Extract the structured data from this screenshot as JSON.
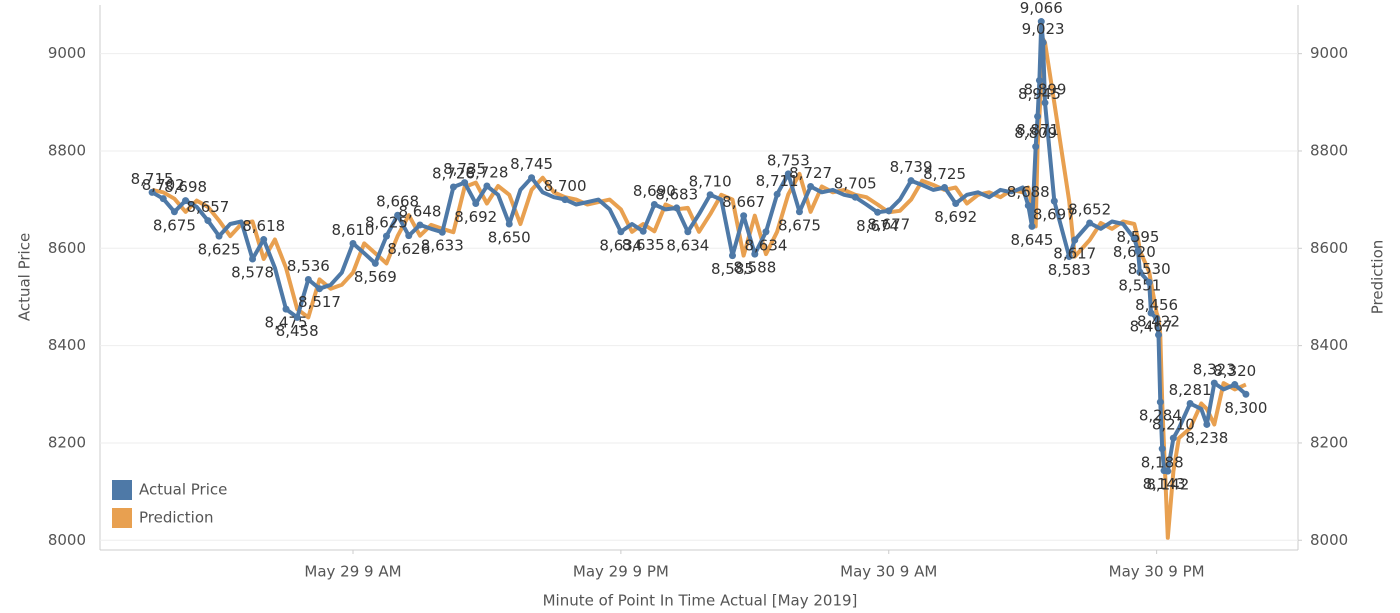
{
  "chart_data": {
    "type": "line",
    "xlabel": "Minute of Point In Time Actual [May 2019]",
    "ylabel": "Actual Price",
    "y2label": "Prediction",
    "x": [
      "2019-05-29 00:00",
      "2019-05-29 00:30",
      "2019-05-29 01:00",
      "2019-05-29 01:30",
      "2019-05-29 02:00",
      "2019-05-29 02:30",
      "2019-05-29 03:00",
      "2019-05-29 03:30",
      "2019-05-29 04:00",
      "2019-05-29 04:30",
      "2019-05-29 05:00",
      "2019-05-29 05:30",
      "2019-05-29 06:00",
      "2019-05-29 06:30",
      "2019-05-29 07:00",
      "2019-05-29 07:30",
      "2019-05-29 08:00",
      "2019-05-29 08:30",
      "2019-05-29 09:00",
      "2019-05-29 09:30",
      "2019-05-29 10:00",
      "2019-05-29 10:30",
      "2019-05-29 11:00",
      "2019-05-29 11:30",
      "2019-05-29 12:00",
      "2019-05-29 12:30",
      "2019-05-29 13:00",
      "2019-05-29 13:30",
      "2019-05-29 14:00",
      "2019-05-29 14:30",
      "2019-05-29 15:00",
      "2019-05-29 15:30",
      "2019-05-29 16:00",
      "2019-05-29 16:30",
      "2019-05-29 17:00",
      "2019-05-29 17:30",
      "2019-05-29 18:00",
      "2019-05-29 18:30",
      "2019-05-29 19:00",
      "2019-05-29 19:30",
      "2019-05-29 20:00",
      "2019-05-29 20:30",
      "2019-05-29 21:00",
      "2019-05-29 21:30",
      "2019-05-29 22:00",
      "2019-05-29 22:30",
      "2019-05-29 23:00",
      "2019-05-29 23:30",
      "2019-05-30 00:00",
      "2019-05-30 00:30",
      "2019-05-30 01:00",
      "2019-05-30 01:30",
      "2019-05-30 02:00",
      "2019-05-30 02:30",
      "2019-05-30 03:00",
      "2019-05-30 03:30",
      "2019-05-30 04:00",
      "2019-05-30 04:30",
      "2019-05-30 05:00",
      "2019-05-30 05:30",
      "2019-05-30 06:00",
      "2019-05-30 06:30",
      "2019-05-30 07:00",
      "2019-05-30 07:30",
      "2019-05-30 08:00",
      "2019-05-30 08:30",
      "2019-05-30 09:00",
      "2019-05-30 09:30",
      "2019-05-30 10:00",
      "2019-05-30 10:30",
      "2019-05-30 11:00",
      "2019-05-30 11:30",
      "2019-05-30 12:00",
      "2019-05-30 12:30",
      "2019-05-30 13:00",
      "2019-05-30 13:30",
      "2019-05-30 14:00",
      "2019-05-30 14:30",
      "2019-05-30 15:00",
      "2019-05-30 15:15",
      "2019-05-30 15:25",
      "2019-05-30 15:35",
      "2019-05-30 15:40",
      "2019-05-30 15:45",
      "2019-05-30 15:50",
      "2019-05-30 15:55",
      "2019-05-30 16:00",
      "2019-05-30 16:25",
      "2019-05-30 17:05",
      "2019-05-30 17:20",
      "2019-05-30 18:00",
      "2019-05-30 18:30",
      "2019-05-30 19:00",
      "2019-05-30 19:30",
      "2019-05-30 20:00",
      "2019-05-30 20:10",
      "2019-05-30 20:15",
      "2019-05-30 20:40",
      "2019-05-30 20:45",
      "2019-05-30 21:00",
      "2019-05-30 21:05",
      "2019-05-30 21:10",
      "2019-05-30 21:15",
      "2019-05-30 21:20",
      "2019-05-30 21:30",
      "2019-05-30 21:45",
      "2019-05-30 22:00",
      "2019-05-30 22:30",
      "2019-05-30 23:00",
      "2019-05-30 23:15",
      "2019-05-30 23:35",
      "2019-05-31 00:00",
      "2019-05-31 00:30",
      "2019-05-31 01:00"
    ],
    "series": [
      {
        "name": "Prediction",
        "color": "#e8a050",
        "axis": "y2",
        "values": [
          8720,
          8715,
          8702,
          8675,
          8698,
          8685,
          8657,
          8625,
          8650,
          8655,
          8578,
          8618,
          8560,
          8475,
          8458,
          8536,
          8517,
          8525,
          8550,
          8610,
          8590,
          8569,
          8625,
          8668,
          8626,
          8648,
          8640,
          8633,
          8726,
          8735,
          8692,
          8728,
          8710,
          8650,
          8720,
          8745,
          8715,
          8705,
          8700,
          8690,
          8695,
          8700,
          8680,
          8634,
          8650,
          8635,
          8690,
          8680,
          8683,
          8634,
          8670,
          8710,
          8700,
          8585,
          8667,
          8588,
          8634,
          8711,
          8753,
          8675,
          8727,
          8715,
          8720,
          8710,
          8705,
          8690,
          8674,
          8677,
          8700,
          8739,
          8730,
          8720,
          8725,
          8692,
          8710,
          8715,
          8705,
          8720,
          8715,
          8725,
          8688,
          8645,
          8809,
          8871,
          8945,
          9030,
          9023,
          8899,
          8697,
          8583,
          8617,
          8652,
          8640,
          8655,
          8650,
          8620,
          8595,
          8551,
          8530,
          8467,
          8456,
          8422,
          8284,
          8188,
          8005,
          8142,
          8210,
          8230,
          8281,
          8270,
          8238,
          8323,
          8310,
          8320
        ]
      },
      {
        "name": "Actual Price",
        "color": "#4e79a7",
        "values": [
          8715,
          8702,
          8675,
          8698,
          8685,
          8657,
          8625,
          8650,
          8655,
          8578,
          8618,
          8560,
          8475,
          8458,
          8536,
          8517,
          8525,
          8550,
          8610,
          8590,
          8569,
          8625,
          8668,
          8626,
          8648,
          8640,
          8633,
          8726,
          8735,
          8692,
          8728,
          8710,
          8650,
          8720,
          8745,
          8715,
          8705,
          8700,
          8690,
          8695,
          8700,
          8680,
          8634,
          8650,
          8635,
          8690,
          8680,
          8683,
          8634,
          8670,
          8710,
          8700,
          8585,
          8667,
          8588,
          8634,
          8711,
          8753,
          8675,
          8727,
          8715,
          8720,
          8710,
          8705,
          8690,
          8674,
          8677,
          8700,
          8739,
          8730,
          8720,
          8725,
          8692,
          8710,
          8715,
          8705,
          8720,
          8715,
          8725,
          8688,
          8645,
          8809,
          8871,
          8945,
          9066,
          9023,
          8899,
          8697,
          8583,
          8617,
          8652,
          8640,
          8655,
          8650,
          8620,
          8595,
          8551,
          8530,
          8467,
          8456,
          8422,
          8284,
          8188,
          8143,
          8142,
          8210,
          8230,
          8281,
          8270,
          8238,
          8323,
          8310,
          8320,
          8300
        ],
        "value_labels": [
          "8,715",
          "8,702",
          "8,675",
          "8,698",
          null,
          "8,657",
          "8,625",
          null,
          null,
          "8,578",
          "8,618",
          null,
          "8,475",
          "8,458",
          "8,536",
          "8,517",
          null,
          null,
          "8,610",
          null,
          "8,569",
          "8,625",
          "8,668",
          "8,626",
          "8,648",
          null,
          "8,633",
          "8,726",
          "8,735",
          "8,692",
          "8,728",
          null,
          "8,650",
          null,
          "8,745",
          null,
          null,
          "8,700",
          null,
          null,
          null,
          null,
          "8,634",
          null,
          "8,635",
          "8,690",
          null,
          "8,683",
          "8,634",
          null,
          "8,710",
          null,
          "8,585",
          "8,667",
          "8,588",
          "8,634",
          "8,711",
          "8,753",
          "8,675",
          "8,727",
          null,
          null,
          null,
          "8,705",
          null,
          "8,674",
          "8,677",
          null,
          "8,739",
          null,
          null,
          "8,725",
          "8,692",
          null,
          null,
          null,
          null,
          null,
          null,
          "8,688",
          "8,645",
          "8,809",
          "8,871",
          "8,945",
          "9,066",
          "9,023",
          "8,899",
          "8,697",
          "8,583",
          "8,617",
          "8,652",
          null,
          null,
          null,
          "8,620",
          "8,595",
          "8,551",
          "8,530",
          "8,467",
          "8,456",
          "8,422",
          "8,284",
          "8,188",
          "8,143",
          "8,142",
          "8,210",
          null,
          "8,281",
          null,
          "8,238",
          "8,323",
          null,
          "8,320",
          "8,300"
        ]
      }
    ],
    "xlim": [
      "2019-05-28 21:40",
      "2019-05-31 03:20"
    ],
    "xticks": [
      {
        "value": "2019-05-29 09:00",
        "label": "May 29 9 AM"
      },
      {
        "value": "2019-05-29 21:00",
        "label": "May 29 9 PM"
      },
      {
        "value": "2019-05-30 09:00",
        "label": "May 30 9 AM"
      },
      {
        "value": "2019-05-30 21:00",
        "label": "May 30 9 PM"
      }
    ],
    "ylim": [
      7980,
      9100
    ],
    "yticks": [
      8000,
      8200,
      8400,
      8600,
      8800,
      9000
    ],
    "y2lim": [
      7980,
      9100
    ],
    "y2ticks": [
      8000,
      8200,
      8400,
      8600,
      8800,
      9000
    ],
    "grid": true,
    "legend": "lower left"
  }
}
